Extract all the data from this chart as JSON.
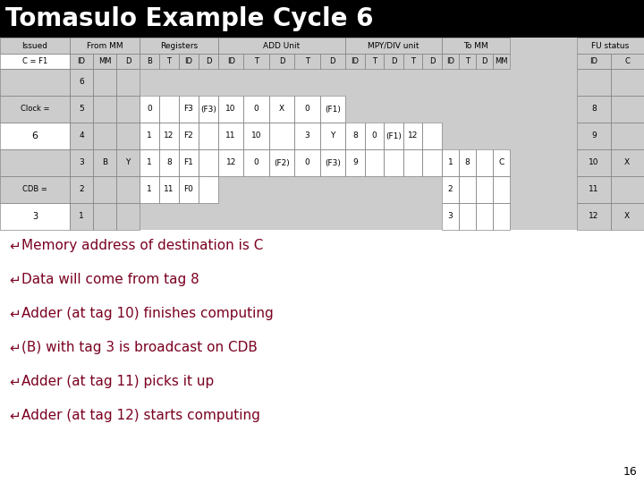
{
  "title": "Tomasulo Example Cycle 6",
  "title_bg": "#000000",
  "title_color": "#ffffff",
  "title_fontsize": 20,
  "bg_color": "#ffffff",
  "table_bg": "#cccccc",
  "white_box": "#ffffff",
  "bullet_color": "#7a0020",
  "slide_number": "16",
  "bullets": [
    "Memory address of destination is C",
    "Data will come from tag 8",
    "Adder (at tag 10) finishes computing",
    "(B) with tag 3 is broadcast on CDB",
    "Adder (at tag 11) picks it up",
    "Adder (at tag 12) starts computing"
  ],
  "issued_label": "C = F1",
  "clock_label": "Clock =",
  "clock_value": "6",
  "cdb_label": "CDB =",
  "cdb_value": "3",
  "from_mm_rows": [
    [
      "6",
      "",
      ""
    ],
    [
      "5",
      "",
      ""
    ],
    [
      "4",
      "",
      ""
    ],
    [
      "3",
      "B",
      "Y"
    ],
    [
      "2",
      "",
      ""
    ],
    [
      "1",
      "",
      ""
    ]
  ],
  "register_rows": [
    [
      "0",
      "",
      "F3",
      "(F3)"
    ],
    [
      "1",
      "12",
      "F2",
      ""
    ],
    [
      "1",
      "8",
      "F1",
      ""
    ],
    [
      "1",
      "11",
      "F0",
      ""
    ]
  ],
  "add_rows": [
    [
      "10",
      "0",
      "X",
      "0",
      "(F1)"
    ],
    [
      "11",
      "10",
      "",
      "3",
      "Y"
    ],
    [
      "12",
      "0",
      "(F2)",
      "0",
      "(F3)"
    ]
  ],
  "mpy_rows": [
    [
      "8",
      "0",
      "(F1)",
      "12",
      ""
    ],
    [
      "9",
      "",
      "",
      "",
      ""
    ]
  ],
  "tomm_rows": [
    [
      "1",
      "8",
      "",
      "C"
    ],
    [
      "2",
      "",
      "",
      ""
    ],
    [
      "3",
      "",
      "",
      ""
    ]
  ],
  "fu_rows": [
    [
      "",
      ""
    ],
    [
      "8",
      ""
    ],
    [
      "9",
      ""
    ],
    [
      "10",
      "X"
    ],
    [
      "11",
      ""
    ],
    [
      "12",
      "X"
    ]
  ]
}
